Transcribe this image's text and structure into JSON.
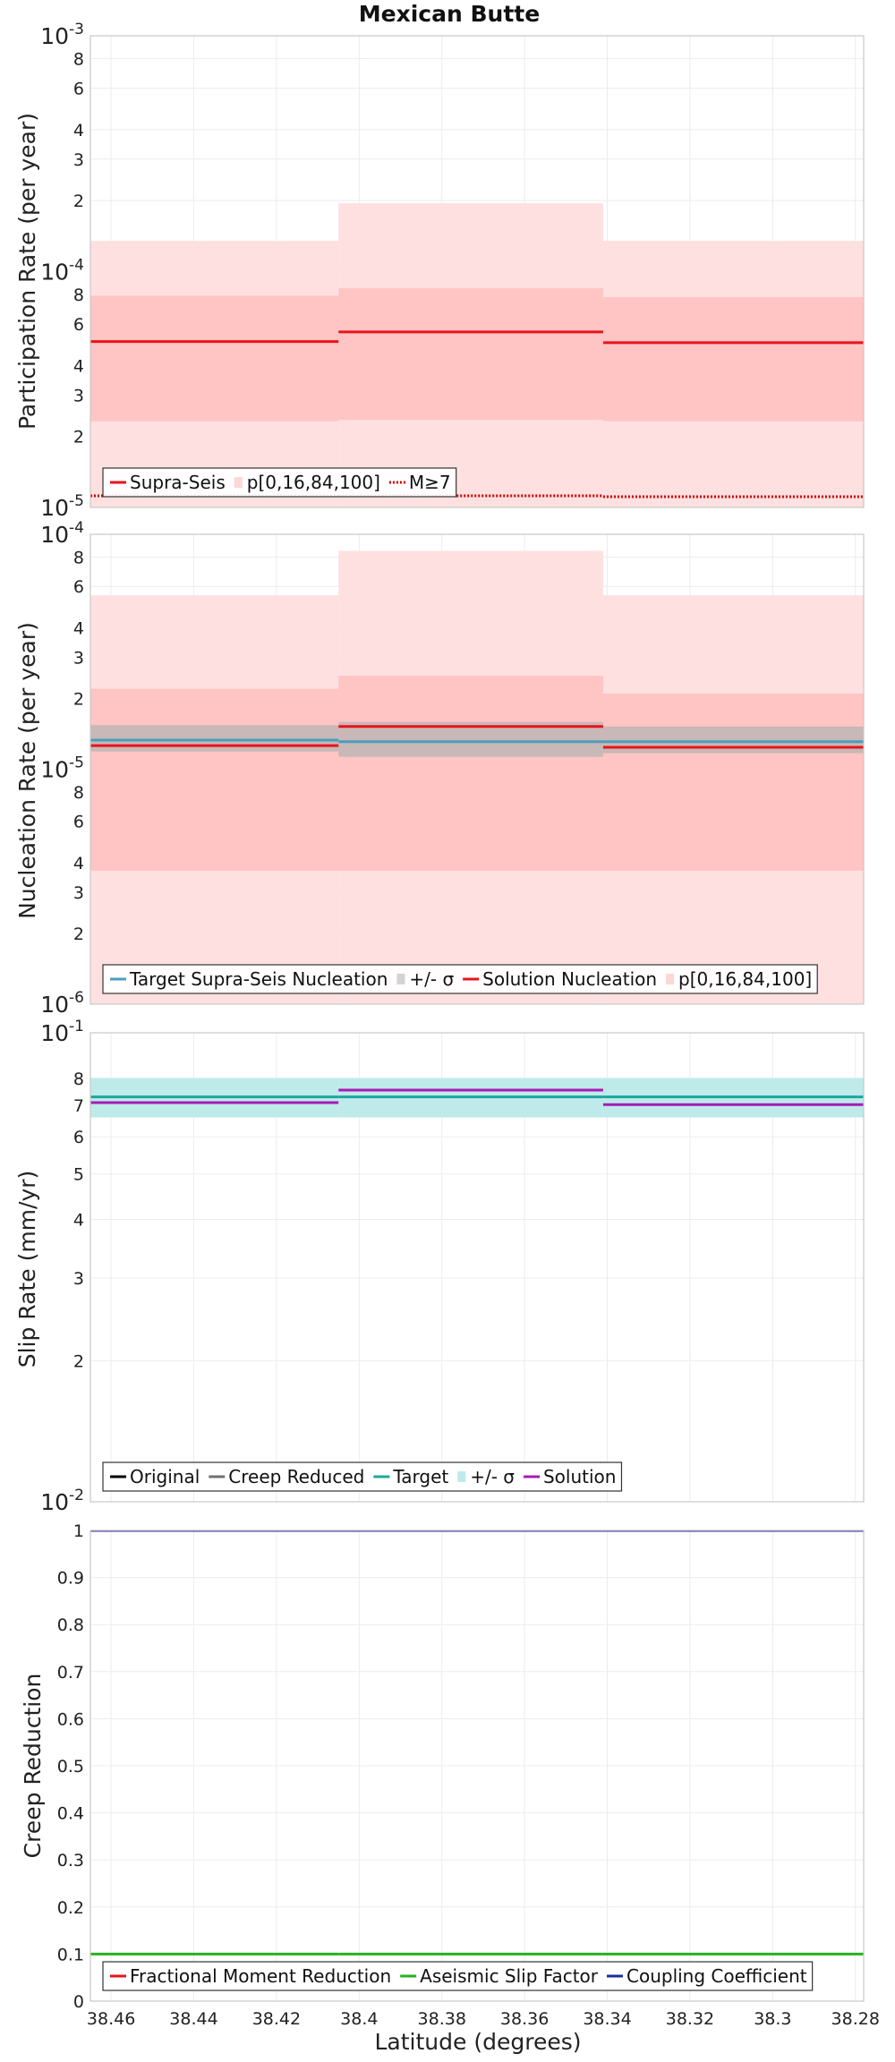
{
  "figure": {
    "title": "Mexican Butte",
    "xlabel": "Latitude (degrees)",
    "x_ticks": [
      38.46,
      38.44,
      38.42,
      38.4,
      38.38,
      38.36,
      38.34,
      38.32,
      38.3,
      38.28
    ],
    "x_tick_labels": [
      "38.46",
      "38.44",
      "38.42",
      "38.4",
      "38.38",
      "38.36",
      "38.34",
      "38.32",
      "38.3",
      "38.28"
    ],
    "xlim": [
      38.465,
      38.278
    ],
    "grid": true
  },
  "chart_data": [
    {
      "type": "line",
      "panel": "participation",
      "scale": "log",
      "ylabel": "Participation Rate (per year)",
      "ylim": [
        1e-05,
        0.001
      ],
      "decades": [
        {
          "base": "10",
          "exp": "-3",
          "v": 0.001
        },
        {
          "base": "10",
          "exp": "-4",
          "v": 0.0001
        },
        {
          "base": "10",
          "exp": "-5",
          "v": 1e-05
        }
      ],
      "minor_ticks": [
        {
          "v": 0.0008,
          "t": "8"
        },
        {
          "v": 0.0006,
          "t": "6"
        },
        {
          "v": 0.0004,
          "t": "4"
        },
        {
          "v": 0.0003,
          "t": "3"
        },
        {
          "v": 0.0002,
          "t": "2"
        },
        {
          "v": 8e-05,
          "t": "8"
        },
        {
          "v": 6e-05,
          "t": "6"
        },
        {
          "v": 4e-05,
          "t": "4"
        },
        {
          "v": 3e-05,
          "t": "3"
        },
        {
          "v": 2e-05,
          "t": "2"
        }
      ],
      "segments": [
        [
          38.465,
          38.405
        ],
        [
          38.405,
          38.341
        ],
        [
          38.341,
          38.278
        ]
      ],
      "bands": [
        {
          "name": "p[0,100]",
          "color": "#ffe0e0",
          "low": [
            1e-05,
            1e-05,
            1e-05
          ],
          "high": [
            0.000135,
            0.000195,
            0.000135
          ]
        },
        {
          "name": "p[16,84]",
          "color": "#ffc4c4",
          "low": [
            2.32e-05,
            2.35e-05,
            2.32e-05
          ],
          "high": [
            7.9e-05,
            8.5e-05,
            7.8e-05
          ]
        }
      ],
      "series": [
        {
          "name": "Supra-Seis",
          "color": "#e8141a",
          "style": "solid",
          "values": [
            5.05e-05,
            5.55e-05,
            5e-05
          ]
        },
        {
          "name": "M≥7",
          "color": "#cc0000",
          "style": "dotted",
          "values": [
            1.12e-05,
            1.12e-05,
            1.11e-05
          ]
        }
      ],
      "legend": {
        "placement": "bottom-left",
        "entries": [
          {
            "label": "Supra-Seis",
            "kind": "line",
            "color": "#e8141a"
          },
          {
            "label": "p[0,16,84,100]",
            "kind": "patch",
            "color": "#ffd6d6"
          },
          {
            "label": "M≥7",
            "kind": "dotted",
            "color": "#cc0000"
          }
        ]
      }
    },
    {
      "type": "line",
      "panel": "nucleation",
      "scale": "log",
      "ylabel": "Nucleation Rate (per year)",
      "ylim": [
        1e-06,
        0.0001
      ],
      "decades": [
        {
          "base": "10",
          "exp": "-4",
          "v": 0.0001
        },
        {
          "base": "10",
          "exp": "-5",
          "v": 1e-05
        },
        {
          "base": "10",
          "exp": "-6",
          "v": 1e-06
        }
      ],
      "minor_ticks": [
        {
          "v": 8e-05,
          "t": "8"
        },
        {
          "v": 6e-05,
          "t": "6"
        },
        {
          "v": 4e-05,
          "t": "4"
        },
        {
          "v": 3e-05,
          "t": "3"
        },
        {
          "v": 2e-05,
          "t": "2"
        },
        {
          "v": 8e-06,
          "t": "8"
        },
        {
          "v": 6e-06,
          "t": "6"
        },
        {
          "v": 4e-06,
          "t": "4"
        },
        {
          "v": 3e-06,
          "t": "3"
        },
        {
          "v": 2e-06,
          "t": "2"
        }
      ],
      "segments": [
        [
          38.465,
          38.405
        ],
        [
          38.405,
          38.341
        ],
        [
          38.341,
          38.278
        ]
      ],
      "bands": [
        {
          "name": "p[0,100]",
          "color": "#ffe0e0",
          "low": [
            1e-06,
            1e-06,
            1e-06
          ],
          "high": [
            5.5e-05,
            8.5e-05,
            5.5e-05
          ]
        },
        {
          "name": "p[16,84]",
          "color": "#ffc4c4",
          "low": [
            3.7e-06,
            3.7e-06,
            3.7e-06
          ],
          "high": [
            2.2e-05,
            2.5e-05,
            2.1e-05
          ]
        },
        {
          "name": "+/- σ",
          "color": "#c8b8b8",
          "low": [
            1.19e-05,
            1.13e-05,
            1.17e-05
          ],
          "high": [
            1.54e-05,
            1.59e-05,
            1.52e-05
          ]
        }
      ],
      "series": [
        {
          "name": "Target Supra-Seis Nucleation",
          "color": "#4b9dbb",
          "style": "solid",
          "values": [
            1.33e-05,
            1.31e-05,
            1.31e-05
          ]
        },
        {
          "name": "Solution Nucleation",
          "color": "#e8141a",
          "style": "solid",
          "values": [
            1.26e-05,
            1.52e-05,
            1.24e-05
          ]
        }
      ],
      "legend": {
        "placement": "bottom-left",
        "entries": [
          {
            "label": "Target Supra-Seis Nucleation",
            "kind": "line",
            "color": "#4b9dbb"
          },
          {
            "label": "+/- σ",
            "kind": "patch",
            "color": "#d3d3d3"
          },
          {
            "label": "Solution Nucleation",
            "kind": "line",
            "color": "#e8141a"
          },
          {
            "label": "p[0,16,84,100]",
            "kind": "patch",
            "color": "#ffd6d6"
          }
        ]
      }
    },
    {
      "type": "line",
      "panel": "slip",
      "scale": "log",
      "ylabel": "Slip Rate (mm/yr)",
      "ylim": [
        0.01,
        0.1
      ],
      "decades": [
        {
          "base": "10",
          "exp": "-1",
          "v": 0.1
        },
        {
          "base": "10",
          "exp": "-2",
          "v": 0.01
        }
      ],
      "minor_ticks": [
        {
          "v": 0.08,
          "t": "8"
        },
        {
          "v": 0.07,
          "t": "7"
        },
        {
          "v": 0.06,
          "t": "6"
        },
        {
          "v": 0.05,
          "t": "5"
        },
        {
          "v": 0.04,
          "t": "4"
        },
        {
          "v": 0.03,
          "t": "3"
        },
        {
          "v": 0.02,
          "t": "2"
        }
      ],
      "segments": [
        [
          38.465,
          38.405
        ],
        [
          38.405,
          38.341
        ],
        [
          38.341,
          38.278
        ]
      ],
      "bands": [
        {
          "name": "+/- σ",
          "color": "#bfeaea",
          "low": [
            0.066,
            0.066,
            0.066
          ],
          "high": [
            0.08,
            0.08,
            0.08
          ]
        }
      ],
      "series": [
        {
          "name": "Target",
          "color": "#1aa89a",
          "style": "solid",
          "values": [
            0.073,
            0.073,
            0.073
          ]
        },
        {
          "name": "Solution",
          "color": "#a61bb5",
          "style": "solid",
          "values": [
            0.071,
            0.0755,
            0.0703
          ]
        }
      ],
      "legend": {
        "placement": "bottom-left",
        "entries": [
          {
            "label": "Original",
            "kind": "line",
            "color": "#000000"
          },
          {
            "label": "Creep Reduced",
            "kind": "line",
            "color": "#707070"
          },
          {
            "label": "Target",
            "kind": "line",
            "color": "#1aa89a"
          },
          {
            "label": "+/- σ",
            "kind": "patch",
            "color": "#bfeaea"
          },
          {
            "label": "Solution",
            "kind": "line",
            "color": "#a61bb5"
          }
        ]
      }
    },
    {
      "type": "line",
      "panel": "creep",
      "scale": "linear",
      "ylabel": "Creep Reduction",
      "ylim": [
        0,
        1
      ],
      "ticks": [
        {
          "v": 1,
          "t": "1"
        },
        {
          "v": 0.9,
          "t": "0.9"
        },
        {
          "v": 0.8,
          "t": "0.8"
        },
        {
          "v": 0.7,
          "t": "0.7"
        },
        {
          "v": 0.6,
          "t": "0.6"
        },
        {
          "v": 0.5,
          "t": "0.5"
        },
        {
          "v": 0.4,
          "t": "0.4"
        },
        {
          "v": 0.3,
          "t": "0.3"
        },
        {
          "v": 0.2,
          "t": "0.2"
        },
        {
          "v": 0.1,
          "t": "0.1"
        },
        {
          "v": 0,
          "t": "0"
        }
      ],
      "segments": [
        [
          38.465,
          38.405
        ],
        [
          38.405,
          38.341
        ],
        [
          38.341,
          38.278
        ]
      ],
      "bands": [],
      "series": [
        {
          "name": "Coupling Coefficient",
          "color": "#1f2a9c",
          "style": "solid",
          "values": [
            1,
            1,
            1
          ]
        },
        {
          "name": "Aseismic Slip Factor",
          "color": "#27b11f",
          "style": "solid",
          "values": [
            0.1,
            0.1,
            0.1
          ]
        }
      ],
      "legend": {
        "placement": "bottom-left",
        "entries": [
          {
            "label": "Fractional Moment Reduction",
            "kind": "line",
            "color": "#e8141a"
          },
          {
            "label": "Aseismic Slip Factor",
            "kind": "line",
            "color": "#27b11f"
          },
          {
            "label": "Coupling Coefficient",
            "kind": "line",
            "color": "#1f2a9c"
          }
        ]
      }
    }
  ]
}
